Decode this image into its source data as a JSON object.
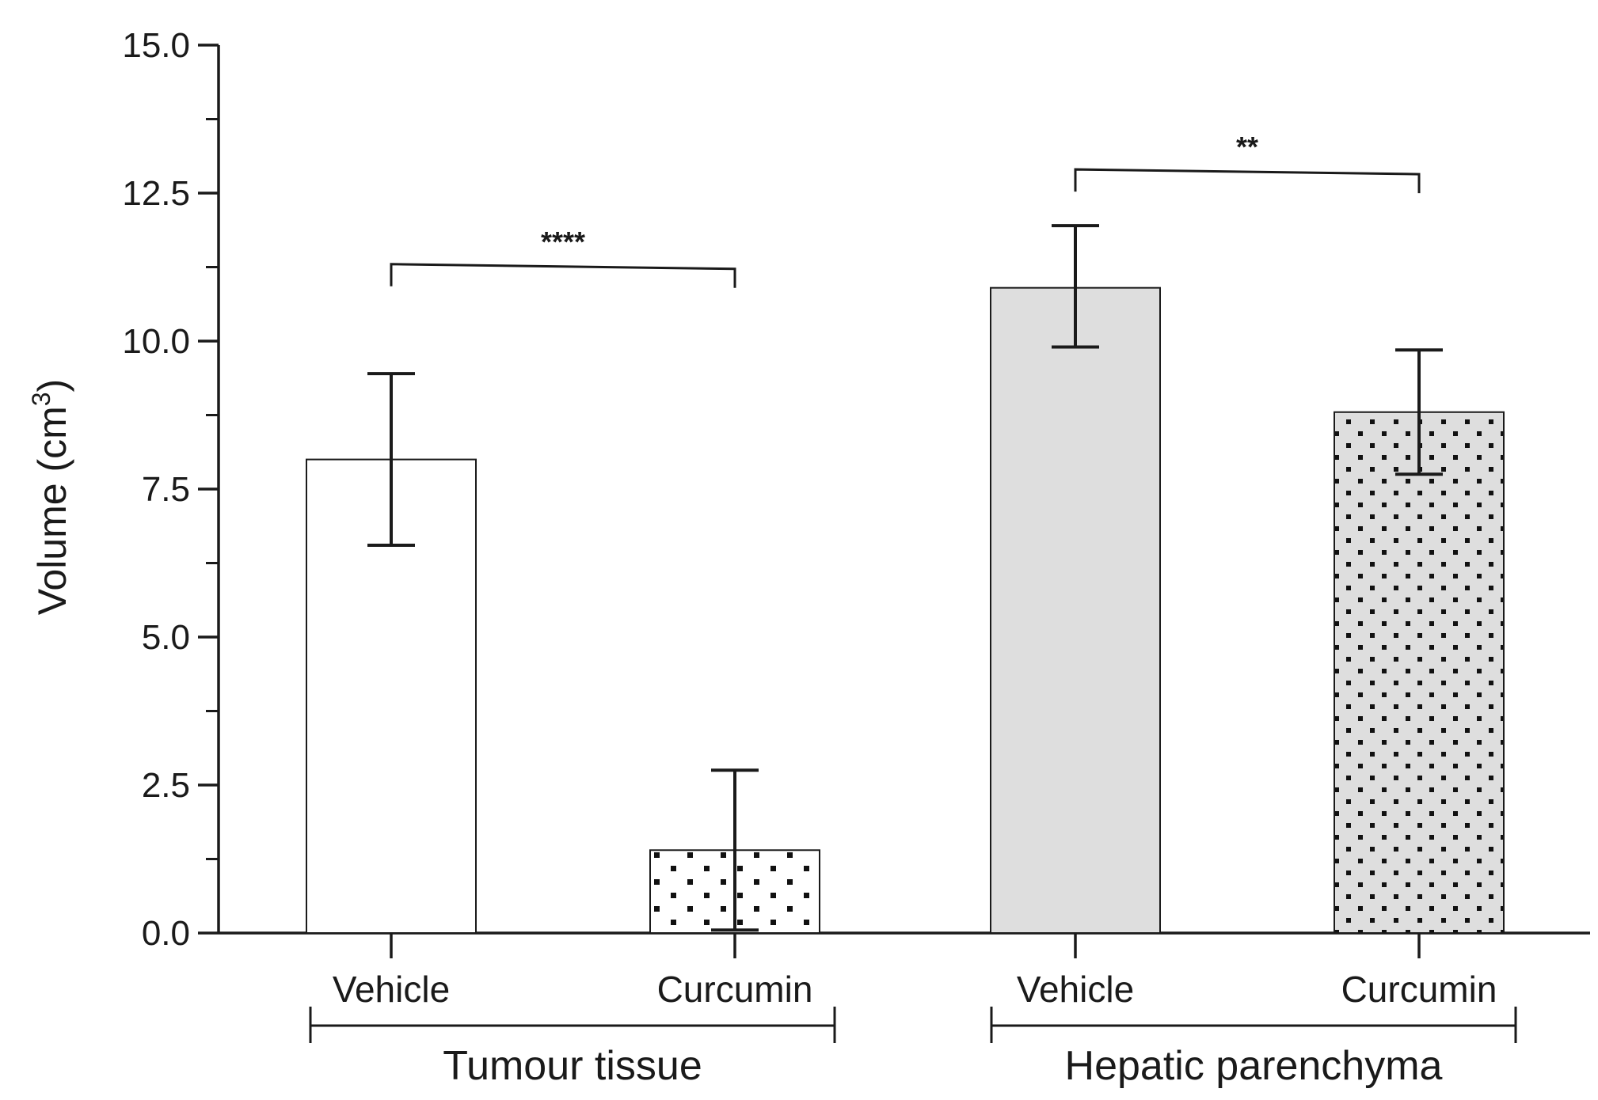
{
  "chart_data": {
    "type": "bar",
    "title": "",
    "ylabel": "Volume (cm",
    "ylabel_sup": "3",
    "ylabel_close": ")",
    "ylim": [
      0,
      15
    ],
    "yticks": [
      "0.0",
      "2.5",
      "5.0",
      "7.5",
      "10.0",
      "12.5",
      "15.0"
    ],
    "grid": false,
    "categories": [
      "Vehicle",
      "Curcumin",
      "Vehicle",
      "Curcumin"
    ],
    "groups": [
      {
        "name": "Tumour tissue",
        "categories": [
          0,
          1
        ]
      },
      {
        "name": "Hepatic parenchyma",
        "categories": [
          2,
          3
        ]
      }
    ],
    "bars": [
      {
        "category": "Vehicle",
        "group": "Tumour tissue",
        "value": 8.0,
        "error_low": 6.55,
        "error_high": 9.45,
        "fill": "#ffffff",
        "pattern": "none"
      },
      {
        "category": "Curcumin",
        "group": "Tumour tissue",
        "value": 1.4,
        "error_low": 0.05,
        "error_high": 2.75,
        "fill": "#ffffff",
        "pattern": "dots"
      },
      {
        "category": "Vehicle",
        "group": "Hepatic parenchyma",
        "value": 10.9,
        "error_low": 9.9,
        "error_high": 11.95,
        "fill": "#dedede",
        "pattern": "none"
      },
      {
        "category": "Curcumin",
        "group": "Hepatic parenchyma",
        "value": 8.8,
        "error_low": 7.75,
        "error_high": 9.85,
        "fill": "#dedede",
        "pattern": "dots"
      }
    ],
    "significance": [
      {
        "from": 0,
        "to": 1,
        "label": "****",
        "level": 11.3
      },
      {
        "from": 2,
        "to": 3,
        "label": "**",
        "level": 12.9
      }
    ],
    "colors": {
      "axis": "#1a1a1a",
      "edge": "#1a1a1a",
      "dot": "#111111"
    }
  }
}
